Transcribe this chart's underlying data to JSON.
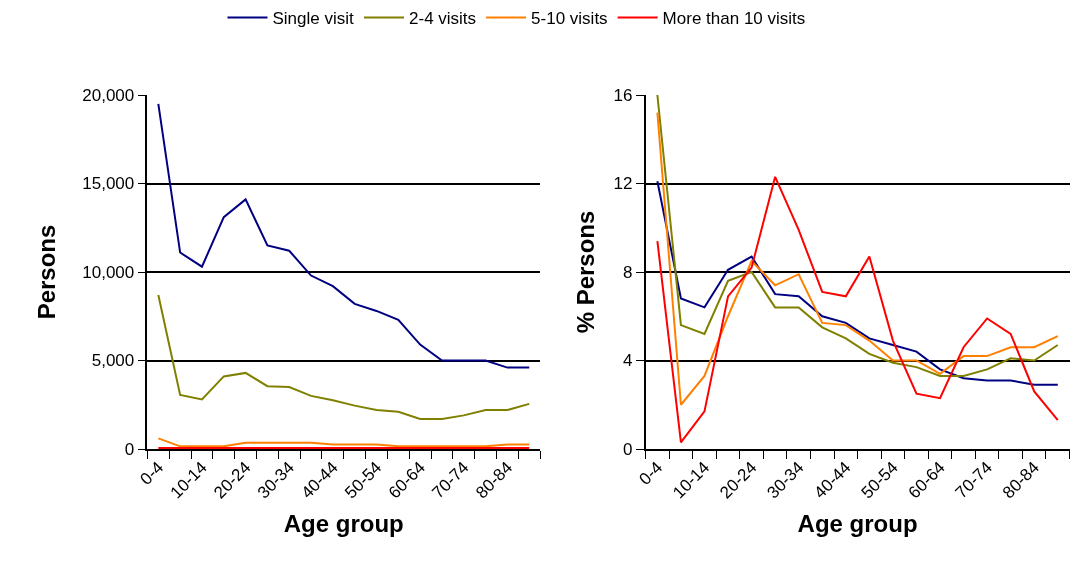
{
  "chart_data": [
    {
      "type": "line",
      "xlabel": "Age group",
      "ylabel": "Persons",
      "categories": [
        "0-4",
        null,
        "10-14",
        null,
        "20-24",
        null,
        "30-34",
        null,
        "40-44",
        null,
        "50-54",
        null,
        "60-64",
        null,
        "70-74",
        null,
        "80-84",
        null
      ],
      "ylim": [
        0,
        20000
      ],
      "yticks": [
        0,
        {
          "value": 5000,
          "label": "5,000"
        },
        {
          "value": 10000,
          "label": "10,000"
        },
        {
          "value": 15000,
          "label": "15,000"
        },
        {
          "value": 20000,
          "label": "20,000"
        }
      ],
      "grid": "y",
      "legend": "top",
      "marker": "none",
      "line_style": "solid",
      "series": [
        {
          "name": "Single visit",
          "color": "#000080",
          "values": [
            19500,
            11100,
            10300,
            13100,
            14100,
            11500,
            11200,
            9800,
            9200,
            8200,
            7800,
            7300,
            5900,
            5000,
            5000,
            5000,
            4600,
            4600
          ]
        },
        {
          "name": "2-4 visits",
          "color": "#808000",
          "values": [
            8700,
            3050,
            2800,
            4100,
            4300,
            3550,
            3500,
            3000,
            2750,
            2450,
            2200,
            2100,
            1700,
            1700,
            1900,
            2200,
            2200,
            2550
          ]
        },
        {
          "name": "5-10 visits",
          "color": "#ff8000",
          "values": [
            600,
            150,
            150,
            150,
            350,
            350,
            350,
            350,
            250,
            250,
            250,
            150,
            150,
            150,
            150,
            150,
            250,
            250
          ]
        },
        {
          "name": "More than 10 visits",
          "color": "#ff0000",
          "values": [
            50,
            50,
            50,
            50,
            50,
            50,
            50,
            50,
            50,
            50,
            50,
            50,
            50,
            50,
            50,
            50,
            50,
            50
          ]
        }
      ]
    },
    {
      "type": "line",
      "xlabel": "Age group",
      "ylabel": "% Persons",
      "categories": [
        "0-4",
        null,
        "10-14",
        null,
        "20-24",
        null,
        "30-34",
        null,
        "40-44",
        null,
        "50-54",
        null,
        "60-64",
        null,
        "70-74",
        null,
        "80-84",
        null
      ],
      "ylim": [
        0,
        16
      ],
      "yticks": [
        0,
        4,
        8,
        12,
        16
      ],
      "grid": "y",
      "marker": "none",
      "line_style": "solid",
      "series": [
        {
          "color": "#000080",
          "values": [
            12.1,
            6.8,
            6.4,
            8.1,
            8.7,
            7.0,
            6.9,
            6.0,
            5.7,
            5.0,
            4.7,
            4.4,
            3.6,
            3.2,
            3.1,
            3.1,
            2.9,
            2.9
          ]
        },
        {
          "color": "#808000",
          "values": [
            16.0,
            5.6,
            5.2,
            7.6,
            8.0,
            6.4,
            6.4,
            5.5,
            5.0,
            4.3,
            3.9,
            3.7,
            3.3,
            3.3,
            3.6,
            4.1,
            4.0,
            4.7
          ]
        },
        {
          "color": "#ff8000",
          "values": [
            15.2,
            2.0,
            3.3,
            6.0,
            8.5,
            7.4,
            7.9,
            5.7,
            5.6,
            4.9,
            4.0,
            4.0,
            3.4,
            4.2,
            4.2,
            4.6,
            4.6,
            5.1
          ]
        },
        {
          "color": "#ff0000",
          "values": [
            9.4,
            0.3,
            1.7,
            6.9,
            8.2,
            12.3,
            9.9,
            7.1,
            6.9,
            8.7,
            4.9,
            2.5,
            2.3,
            4.6,
            5.9,
            5.2,
            2.6,
            1.3
          ]
        }
      ]
    }
  ]
}
